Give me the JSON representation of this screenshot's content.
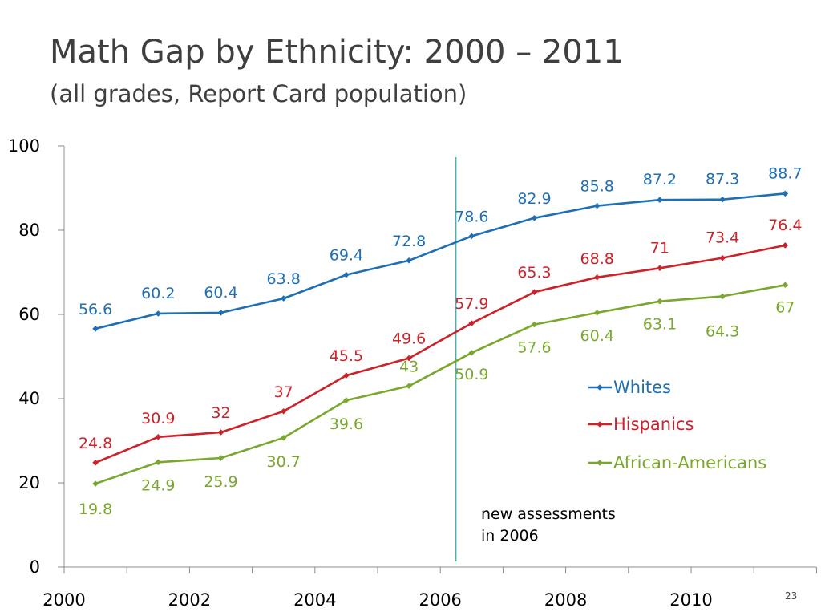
{
  "slide": {
    "title": "Math Gap by Ethnicity:  2000 – 2011",
    "subtitle": "(all grades, Report Card population)",
    "page_number": "23"
  },
  "chart_data": {
    "type": "line",
    "x": [
      2000,
      2001,
      2002,
      2003,
      2004,
      2005,
      2006,
      2007,
      2008,
      2009,
      2010,
      2011
    ],
    "x_tick_labels": [
      "2000",
      "2002",
      "2004",
      "2006",
      "2008",
      "2010"
    ],
    "x_tick_values": [
      2000,
      2002,
      2004,
      2006,
      2008,
      2010
    ],
    "ylim": [
      0,
      100
    ],
    "y_ticks": [
      0,
      20,
      40,
      60,
      80,
      100
    ],
    "grid": false,
    "legend_position": "right",
    "series": [
      {
        "name": "Whites",
        "color": "#1f6fb5",
        "values": [
          56.6,
          60.2,
          60.4,
          63.8,
          69.4,
          72.8,
          78.6,
          82.9,
          85.8,
          87.2,
          87.3,
          88.7
        ],
        "labels": [
          "56.6",
          "60.2",
          "60.4",
          "63.8",
          "69.4",
          "72.8",
          "78.6",
          "82.9",
          "85.8",
          "87.2",
          "87.3",
          "88.7"
        ]
      },
      {
        "name": "Hispanics",
        "color": "#cc2229",
        "values": [
          24.8,
          30.9,
          32,
          37,
          45.5,
          49.6,
          57.9,
          65.3,
          68.8,
          71,
          73.4,
          76.4
        ],
        "labels": [
          "24.8",
          "30.9",
          "32",
          "37",
          "45.5",
          "49.6",
          "57.9",
          "65.3",
          "68.8",
          "71",
          "73.4",
          "76.4"
        ]
      },
      {
        "name": "African-Americans",
        "color": "#7aa72d",
        "values": [
          19.8,
          24.9,
          25.9,
          30.7,
          39.6,
          43,
          50.9,
          57.6,
          60.4,
          63.1,
          64.3,
          67
        ],
        "labels": [
          "19.8",
          "24.9",
          "25.9",
          "30.7",
          "39.6",
          "43",
          "50.9",
          "57.6",
          "60.4",
          "63.1",
          "64.3",
          "67"
        ]
      }
    ],
    "annotation": {
      "x": 2005.75,
      "lines": [
        "new assessments",
        "in 2006"
      ],
      "color": "#2aa0b0"
    }
  }
}
